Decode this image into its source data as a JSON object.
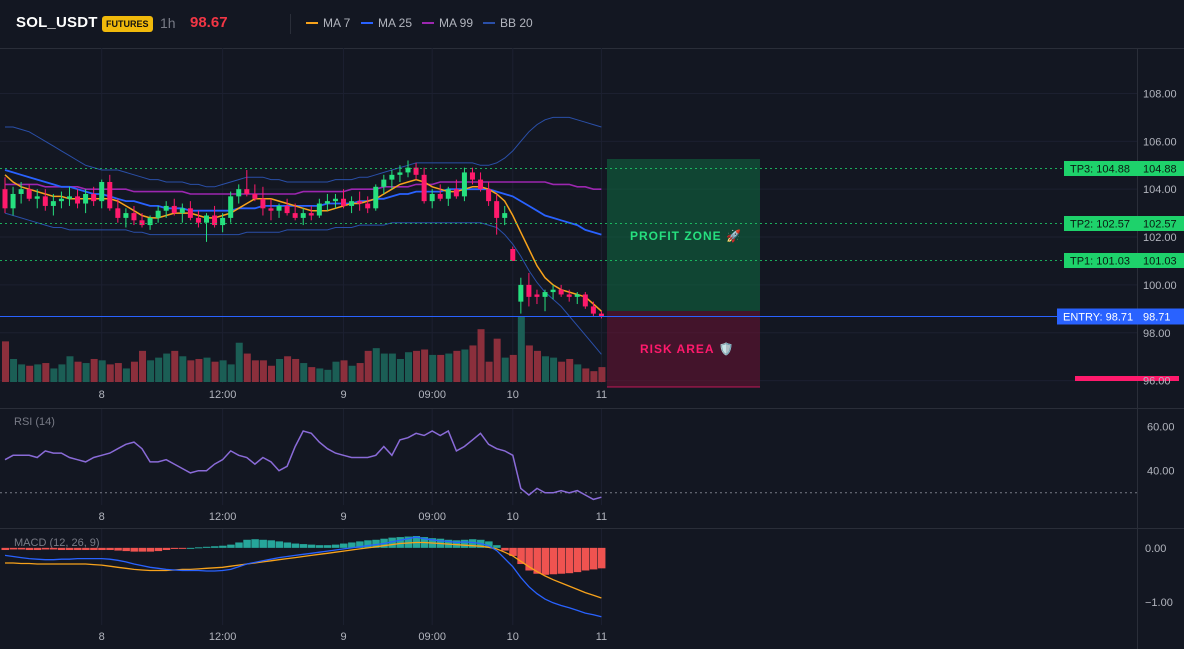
{
  "header": {
    "symbol": "SOL_USDT",
    "badge": "FUTURES",
    "timeframe": "1h",
    "price": "98.67",
    "legend": [
      {
        "label": "MA 7",
        "color": "#f7a21b"
      },
      {
        "label": "MA 25",
        "color": "#2962ff"
      },
      {
        "label": "MA 99",
        "color": "#9c27b0"
      },
      {
        "label": "BB 20",
        "color": "#2a4fa8"
      }
    ]
  },
  "colors": {
    "up": "#26e07f",
    "down": "#ff1a6c",
    "vol_up": "#1b5e55",
    "vol_down": "#8b2f3c",
    "profit": "#0f6b42",
    "risk": "#6b1233",
    "entry": "#2962ff",
    "tp": "#1ed26b"
  },
  "overlay": {
    "profit_label": "PROFIT ZONE 🚀",
    "risk_label": "RISK AREA 🛡️",
    "tp3_label": "TP3: 104.88",
    "tp3_value": "104.88",
    "tp2_label": "TP2: 102.57",
    "tp2_value": "102.57",
    "tp1_label": "TP1: 101.03",
    "tp1_value": "101.03",
    "entry_label": "ENTRY: 98.71",
    "entry_value": "98.71"
  },
  "chart_data": [
    {
      "type": "candlestick",
      "ylim": [
        95.9,
        109.9
      ],
      "price_ticks": [
        "108.00",
        "106.00",
        "104.00",
        "102.00",
        "100.00",
        "98.00",
        "96.00"
      ],
      "x_ticks": [
        {
          "label": "8",
          "i": 12
        },
        {
          "label": "12:00",
          "i": 27
        },
        {
          "label": "9",
          "i": 42
        },
        {
          "label": "09:00",
          "i": 53
        },
        {
          "label": "10",
          "i": 63
        },
        {
          "label": "11",
          "i": 74
        }
      ],
      "levels": {
        "tp3": 104.88,
        "tp2": 102.57,
        "tp1": 101.03,
        "entry": 98.71
      },
      "ohlc": [
        [
          104.0,
          104.5,
          103.0,
          103.2
        ],
        [
          103.2,
          104.1,
          102.9,
          103.8
        ],
        [
          103.8,
          104.3,
          103.4,
          104.0
        ],
        [
          104.0,
          104.2,
          103.5,
          103.6
        ],
        [
          103.6,
          104.0,
          103.2,
          103.7
        ],
        [
          103.7,
          104.0,
          103.1,
          103.3
        ],
        [
          103.3,
          103.8,
          102.9,
          103.5
        ],
        [
          103.5,
          103.9,
          103.2,
          103.6
        ],
        [
          103.6,
          104.1,
          103.3,
          103.7
        ],
        [
          103.7,
          104.0,
          103.2,
          103.4
        ],
        [
          103.4,
          104.0,
          103.0,
          103.8
        ],
        [
          103.8,
          104.1,
          103.3,
          103.5
        ],
        [
          103.5,
          104.4,
          103.2,
          104.3
        ],
        [
          104.3,
          104.6,
          103.1,
          103.2
        ],
        [
          103.2,
          103.6,
          102.6,
          102.8
        ],
        [
          102.8,
          103.2,
          102.4,
          103.0
        ],
        [
          103.0,
          103.3,
          102.5,
          102.7
        ],
        [
          102.7,
          103.0,
          102.4,
          102.5
        ],
        [
          102.5,
          102.9,
          102.3,
          102.8
        ],
        [
          102.8,
          103.3,
          102.6,
          103.1
        ],
        [
          103.1,
          103.5,
          102.8,
          103.3
        ],
        [
          103.3,
          103.6,
          102.9,
          103.0
        ],
        [
          103.0,
          103.4,
          102.6,
          103.2
        ],
        [
          103.2,
          103.5,
          102.7,
          102.8
        ],
        [
          102.8,
          103.1,
          102.4,
          102.6
        ],
        [
          102.6,
          103.0,
          101.8,
          102.9
        ],
        [
          102.9,
          103.3,
          102.4,
          102.5
        ],
        [
          102.5,
          103.0,
          102.2,
          102.8
        ],
        [
          102.8,
          103.9,
          102.6,
          103.7
        ],
        [
          103.7,
          104.2,
          103.4,
          104.0
        ],
        [
          104.0,
          104.8,
          103.7,
          103.8
        ],
        [
          103.8,
          104.2,
          103.5,
          103.6
        ],
        [
          103.6,
          104.1,
          102.9,
          103.2
        ],
        [
          103.2,
          103.6,
          102.7,
          103.1
        ],
        [
          103.1,
          103.4,
          102.8,
          103.3
        ],
        [
          103.3,
          103.6,
          102.9,
          103.0
        ],
        [
          103.0,
          103.4,
          102.7,
          102.8
        ],
        [
          102.8,
          103.2,
          102.5,
          103.0
        ],
        [
          103.0,
          103.3,
          102.7,
          102.9
        ],
        [
          102.9,
          103.6,
          102.8,
          103.4
        ],
        [
          103.4,
          103.8,
          103.1,
          103.5
        ],
        [
          103.5,
          103.8,
          103.2,
          103.6
        ],
        [
          103.6,
          104.0,
          103.2,
          103.3
        ],
        [
          103.3,
          103.7,
          103.0,
          103.5
        ],
        [
          103.5,
          103.9,
          103.1,
          103.4
        ],
        [
          103.4,
          103.7,
          103.0,
          103.2
        ],
        [
          103.2,
          104.2,
          103.1,
          104.1
        ],
        [
          104.1,
          104.6,
          103.8,
          104.4
        ],
        [
          104.4,
          104.8,
          104.0,
          104.6
        ],
        [
          104.6,
          105.0,
          104.3,
          104.7
        ],
        [
          104.7,
          105.2,
          104.5,
          104.9
        ],
        [
          104.9,
          105.1,
          104.4,
          104.6
        ],
        [
          104.6,
          104.9,
          103.4,
          103.5
        ],
        [
          103.5,
          104.0,
          103.2,
          103.8
        ],
        [
          103.8,
          104.2,
          103.5,
          103.6
        ],
        [
          103.6,
          104.1,
          103.3,
          104.0
        ],
        [
          104.0,
          104.4,
          103.6,
          103.7
        ],
        [
          103.7,
          104.9,
          103.5,
          104.7
        ],
        [
          104.7,
          104.9,
          104.2,
          104.4
        ],
        [
          104.4,
          104.7,
          103.9,
          104.0
        ],
        [
          104.0,
          104.3,
          103.3,
          103.5
        ],
        [
          103.5,
          103.8,
          102.1,
          102.8
        ],
        [
          102.8,
          103.3,
          102.5,
          103.0
        ],
        [
          101.5,
          101.6,
          101.0,
          101.0
        ],
        [
          99.3,
          100.3,
          98.8,
          100.0
        ],
        [
          100.0,
          100.5,
          99.1,
          99.5
        ],
        [
          99.6,
          99.8,
          99.2,
          99.5
        ],
        [
          99.5,
          99.8,
          98.9,
          99.7
        ],
        [
          99.7,
          100.0,
          99.4,
          99.8
        ],
        [
          99.8,
          100.0,
          99.5,
          99.6
        ],
        [
          99.6,
          99.8,
          99.3,
          99.5
        ],
        [
          99.5,
          99.7,
          99.2,
          99.6
        ],
        [
          99.6,
          99.7,
          99.0,
          99.1
        ],
        [
          99.1,
          99.3,
          98.7,
          98.8
        ],
        [
          98.8,
          98.9,
          98.6,
          98.67
        ]
      ],
      "ma7": [
        104.6,
        104.3,
        104.1,
        104.0,
        103.9,
        103.8,
        103.7,
        103.7,
        103.6,
        103.6,
        103.6,
        103.6,
        103.6,
        103.6,
        103.5,
        103.3,
        103.1,
        102.9,
        102.8,
        102.8,
        102.9,
        103.0,
        103.0,
        103.0,
        102.9,
        102.8,
        102.8,
        102.9,
        103.0,
        103.2,
        103.4,
        103.6,
        103.6,
        103.6,
        103.5,
        103.4,
        103.3,
        103.2,
        103.1,
        103.1,
        103.1,
        103.2,
        103.3,
        103.4,
        103.4,
        103.5,
        103.6,
        103.8,
        104.0,
        104.2,
        104.3,
        104.4,
        104.3,
        104.1,
        104.0,
        103.9,
        103.9,
        104.0,
        104.1,
        104.1,
        104.0,
        103.8,
        103.5,
        102.9,
        102.2,
        101.5,
        100.8,
        100.3,
        100.0,
        99.8,
        99.7,
        99.6,
        99.5,
        99.2,
        98.9
      ],
      "ma25": [
        104.8,
        104.7,
        104.6,
        104.5,
        104.4,
        104.3,
        104.2,
        104.1,
        104.1,
        104.0,
        103.9,
        103.8,
        103.8,
        103.7,
        103.6,
        103.5,
        103.5,
        103.4,
        103.3,
        103.3,
        103.2,
        103.2,
        103.2,
        103.1,
        103.1,
        103.1,
        103.1,
        103.1,
        103.1,
        103.2,
        103.2,
        103.2,
        103.3,
        103.3,
        103.3,
        103.3,
        103.3,
        103.3,
        103.3,
        103.3,
        103.4,
        103.4,
        103.4,
        103.4,
        103.5,
        103.5,
        103.6,
        103.6,
        103.7,
        103.8,
        103.8,
        103.9,
        103.9,
        103.9,
        103.9,
        104.0,
        104.0,
        104.0,
        104.0,
        104.0,
        104.0,
        103.9,
        103.8,
        103.7,
        103.5,
        103.3,
        103.1,
        102.9,
        102.8,
        102.7,
        102.6,
        102.5,
        102.3,
        102.2,
        102.1
      ],
      "ma99": [
        104.2,
        104.2,
        104.2,
        104.2,
        104.2,
        104.1,
        104.1,
        104.1,
        104.1,
        104.1,
        104.0,
        104.0,
        104.0,
        104.0,
        104.0,
        104.0,
        103.9,
        103.9,
        103.9,
        103.9,
        103.9,
        103.9,
        103.9,
        103.8,
        103.8,
        103.8,
        103.8,
        103.8,
        103.8,
        103.8,
        103.8,
        103.8,
        103.8,
        103.8,
        103.8,
        103.8,
        103.8,
        103.9,
        103.9,
        103.9,
        103.9,
        103.9,
        103.9,
        104.0,
        104.0,
        104.0,
        104.0,
        104.1,
        104.1,
        104.1,
        104.1,
        104.2,
        104.2,
        104.2,
        104.3,
        104.3,
        104.3,
        104.3,
        104.3,
        104.3,
        104.3,
        104.3,
        104.3,
        104.3,
        104.3,
        104.3,
        104.3,
        104.3,
        104.2,
        104.2,
        104.2,
        104.1,
        104.1,
        104.0,
        104.0
      ],
      "bb_upper": [
        106.6,
        106.6,
        106.5,
        106.4,
        106.2,
        106.0,
        105.8,
        105.6,
        105.4,
        105.2,
        105.0,
        104.9,
        104.8,
        104.8,
        104.8,
        104.7,
        104.6,
        104.5,
        104.4,
        104.4,
        104.3,
        104.3,
        104.3,
        104.2,
        104.2,
        104.1,
        104.1,
        104.2,
        104.3,
        104.4,
        104.5,
        104.5,
        104.5,
        104.4,
        104.4,
        104.3,
        104.3,
        104.3,
        104.3,
        104.3,
        104.3,
        104.4,
        104.4,
        104.4,
        104.5,
        104.5,
        104.6,
        104.7,
        104.8,
        104.9,
        105.0,
        105.1,
        105.1,
        105.1,
        105.1,
        105.1,
        105.1,
        105.1,
        105.1,
        105.0,
        105.0,
        105.1,
        105.3,
        105.6,
        106.0,
        106.4,
        106.7,
        106.9,
        107.0,
        107.0,
        107.0,
        106.9,
        106.8,
        106.7,
        106.6
      ],
      "bb_lower": [
        103.0,
        102.9,
        102.8,
        102.7,
        102.6,
        102.5,
        102.4,
        102.4,
        102.3,
        102.3,
        102.3,
        102.3,
        102.3,
        102.3,
        102.3,
        102.3,
        102.2,
        102.2,
        102.1,
        102.1,
        102.1,
        102.1,
        102.1,
        102.1,
        102.1,
        102.1,
        102.1,
        102.1,
        102.1,
        102.1,
        102.2,
        102.2,
        102.2,
        102.2,
        102.2,
        102.3,
        102.3,
        102.3,
        102.3,
        102.3,
        102.3,
        102.4,
        102.4,
        102.4,
        102.5,
        102.5,
        102.5,
        102.5,
        102.6,
        102.6,
        102.6,
        102.6,
        102.6,
        102.6,
        102.6,
        102.6,
        102.6,
        102.6,
        102.6,
        102.6,
        102.5,
        102.4,
        102.1,
        101.7,
        101.2,
        100.6,
        100.1,
        99.7,
        99.4,
        99.1,
        98.7,
        98.3,
        97.9,
        97.5,
        97.1
      ],
      "volume": [
        3.0,
        1.7,
        1.3,
        1.2,
        1.3,
        1.4,
        1.0,
        1.3,
        1.9,
        1.5,
        1.4,
        1.7,
        1.6,
        1.3,
        1.4,
        1.0,
        1.5,
        2.3,
        1.6,
        1.8,
        2.1,
        2.3,
        1.9,
        1.6,
        1.7,
        1.8,
        1.5,
        1.6,
        1.3,
        2.9,
        2.1,
        1.6,
        1.6,
        1.2,
        1.7,
        1.9,
        1.7,
        1.4,
        1.1,
        1.0,
        0.9,
        1.5,
        1.6,
        1.2,
        1.4,
        2.3,
        2.5,
        2.1,
        2.1,
        1.7,
        2.2,
        2.3,
        2.4,
        2.0,
        2.0,
        2.1,
        2.3,
        2.4,
        2.7,
        3.9,
        1.5,
        3.2,
        1.8,
        2.0,
        4.8,
        2.7,
        2.3,
        1.9,
        1.8,
        1.5,
        1.7,
        1.3,
        1.0,
        0.8,
        1.1
      ]
    },
    {
      "type": "line",
      "title": "RSI (14)",
      "ylim": [
        24,
        68
      ],
      "y_ticks": [
        "60.00",
        "40.00"
      ],
      "reference": 30,
      "values": [
        45,
        47,
        47,
        47,
        46,
        49,
        48,
        48,
        46,
        45,
        44,
        46,
        47,
        48,
        50,
        52,
        53,
        50,
        44,
        44,
        45,
        43,
        41,
        39,
        40,
        40,
        43,
        45,
        49,
        47,
        46,
        43,
        46,
        44,
        40,
        42,
        51,
        58,
        57,
        53,
        50,
        48,
        47,
        46,
        46,
        46,
        47,
        51,
        47,
        54,
        55,
        57,
        56,
        58,
        56,
        58,
        49,
        51,
        54,
        57,
        52,
        50,
        49,
        47,
        32,
        29,
        32,
        30,
        30,
        31,
        30,
        31,
        29,
        27,
        28
      ]
    },
    {
      "type": "bar+line",
      "title": "MACD (12, 26, 9)",
      "ylim": [
        -1.45,
        0.35
      ],
      "y_ticks": [
        "0.00",
        "−1.00"
      ],
      "hist": [
        -0.04,
        -0.03,
        -0.03,
        -0.04,
        -0.04,
        -0.03,
        -0.03,
        -0.04,
        -0.04,
        -0.04,
        -0.04,
        -0.04,
        -0.04,
        -0.04,
        -0.05,
        -0.06,
        -0.07,
        -0.07,
        -0.07,
        -0.06,
        -0.04,
        -0.02,
        -0.01,
        0.0,
        0.01,
        0.02,
        0.03,
        0.04,
        0.06,
        0.1,
        0.15,
        0.16,
        0.15,
        0.14,
        0.12,
        0.1,
        0.08,
        0.07,
        0.06,
        0.05,
        0.05,
        0.06,
        0.08,
        0.1,
        0.12,
        0.14,
        0.15,
        0.17,
        0.19,
        0.2,
        0.21,
        0.22,
        0.2,
        0.18,
        0.17,
        0.15,
        0.14,
        0.15,
        0.16,
        0.15,
        0.12,
        0.05,
        -0.05,
        -0.15,
        -0.3,
        -0.42,
        -0.48,
        -0.5,
        -0.49,
        -0.48,
        -0.47,
        -0.45,
        -0.42,
        -0.4,
        -0.38
      ],
      "macd": [
        -0.14,
        -0.16,
        -0.18,
        -0.2,
        -0.21,
        -0.22,
        -0.22,
        -0.21,
        -0.21,
        -0.2,
        -0.2,
        -0.2,
        -0.2,
        -0.21,
        -0.23,
        -0.26,
        -0.3,
        -0.33,
        -0.36,
        -0.38,
        -0.4,
        -0.41,
        -0.42,
        -0.42,
        -0.42,
        -0.43,
        -0.43,
        -0.42,
        -0.4,
        -0.35,
        -0.3,
        -0.27,
        -0.24,
        -0.21,
        -0.18,
        -0.16,
        -0.14,
        -0.12,
        -0.1,
        -0.08,
        -0.06,
        -0.04,
        -0.02,
        0.0,
        0.02,
        0.04,
        0.06,
        0.08,
        0.11,
        0.14,
        0.17,
        0.2,
        0.17,
        0.15,
        0.13,
        0.12,
        0.1,
        0.11,
        0.1,
        0.08,
        0.04,
        -0.05,
        -0.2,
        -0.35,
        -0.55,
        -0.72,
        -0.85,
        -0.95,
        -1.02,
        -1.07,
        -1.11,
        -1.16,
        -1.21,
        -1.24,
        -1.28
      ],
      "signal": [
        -0.28,
        -0.28,
        -0.29,
        -0.29,
        -0.3,
        -0.3,
        -0.3,
        -0.3,
        -0.3,
        -0.3,
        -0.3,
        -0.31,
        -0.32,
        -0.34,
        -0.36,
        -0.38,
        -0.4,
        -0.41,
        -0.42,
        -0.42,
        -0.42,
        -0.41,
        -0.4,
        -0.4,
        -0.39,
        -0.38,
        -0.37,
        -0.36,
        -0.34,
        -0.32,
        -0.3,
        -0.28,
        -0.26,
        -0.24,
        -0.22,
        -0.2,
        -0.18,
        -0.16,
        -0.14,
        -0.12,
        -0.1,
        -0.08,
        -0.06,
        -0.04,
        -0.02,
        0.0,
        0.02,
        0.04,
        0.06,
        0.08,
        0.09,
        0.1,
        0.1,
        0.09,
        0.08,
        0.07,
        0.06,
        0.05,
        0.04,
        0.03,
        0.01,
        -0.02,
        -0.08,
        -0.15,
        -0.25,
        -0.35,
        -0.44,
        -0.52,
        -0.59,
        -0.65,
        -0.71,
        -0.77,
        -0.83,
        -0.88,
        -0.93
      ]
    }
  ]
}
